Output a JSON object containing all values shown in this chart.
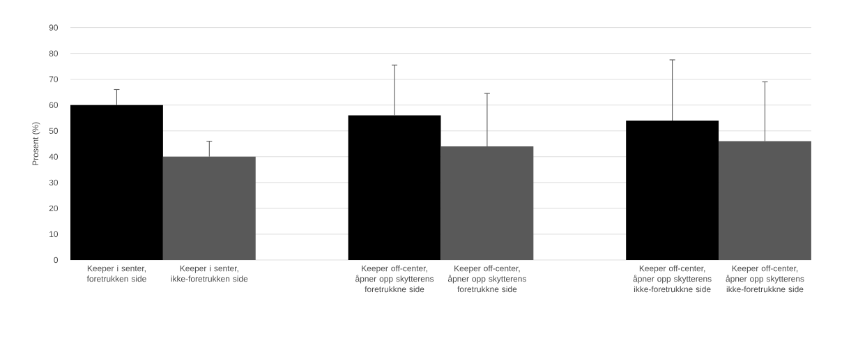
{
  "chart_data": {
    "type": "bar",
    "ylabel": "Prosent (%)",
    "categories": [
      "Keeper i senter, foretrukken side",
      "Keeper i senter, ikke-foretrukken side",
      null,
      "Keeper off-center, åpner opp skytterens foretrukkne side",
      "Keeper off-center, åpner opp skytterens foretrukkne side",
      null,
      "Keeper off-center, åpner opp skytterens ikke-foretrukkne side",
      "Keeper off-center, åpner opp skytterens ikke-foretrukkne side"
    ],
    "values": [
      60,
      40,
      null,
      56,
      44,
      null,
      54,
      46
    ],
    "colors": [
      "#000000",
      "#595959",
      "#000000",
      "#000000",
      "#595959",
      "#000000",
      "#000000",
      "#595959"
    ],
    "errors": [
      [
        60,
        66
      ],
      [
        40,
        46
      ],
      null,
      [
        56,
        75.5
      ],
      [
        44,
        64.5
      ],
      null,
      [
        54,
        77.5
      ],
      [
        46,
        69
      ]
    ],
    "ylim": [
      0,
      90
    ],
    "yticks": [
      0,
      10,
      20,
      30,
      40,
      50,
      60,
      70,
      80,
      90
    ],
    "grid": "y"
  }
}
